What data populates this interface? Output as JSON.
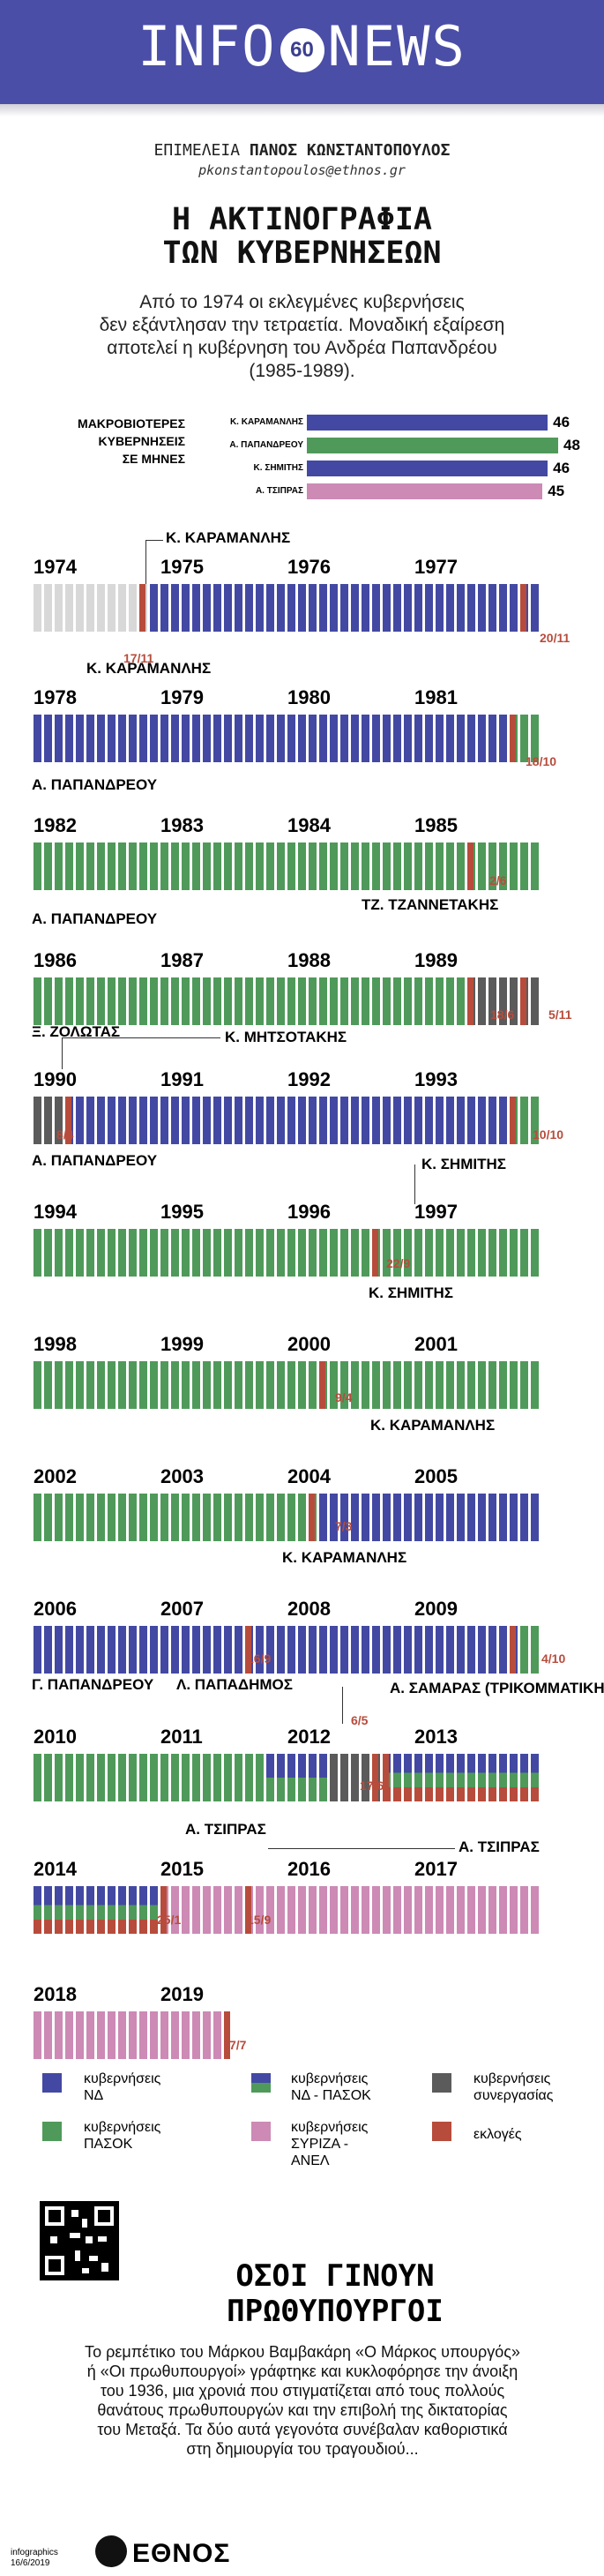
{
  "header": {
    "brand_left": "INFO",
    "number": "60",
    "brand_right": "NEWS"
  },
  "byline": {
    "label": "ΕΠΙΜΕΛΕΙΑ",
    "author": "ΠΑΝΟΣ ΚΩΝΣΤΑΝΤΟΠΟΥΛΟΣ",
    "email": "pkonstantopoulos@ethnos.gr"
  },
  "title": {
    "line1": "Η ΑΚΤΙΝΟΓΡΑΦΙΑ",
    "line2": "ΤΩΝ ΚΥΒΕΡΝΗΣΕΩΝ"
  },
  "lead": {
    "line1": "Από το 1974 οι εκλεγμένες κυβερνήσεις",
    "line2": "δεν εξάντλησαν την τετραετία. Μοναδική εξαίρεση",
    "line3": "αποτελεί η κυβέρνηση του Ανδρέα Παπανδρέου",
    "line4": "(1985-1989)."
  },
  "colors": {
    "nd": "#4349a2",
    "pasok": "#4f9a5a",
    "coalition": "#5b5b5b",
    "syriza": "#cc8ab5",
    "elections": "#b74c3c",
    "pre": "#d8d8d8"
  },
  "chart_data": {
    "type": "bar",
    "title": "ΜΑΚΡΟΒΙΟΤΕΡΕΣ ΚΥΒΕΡΝΗΣΕΙΣ ΣΕ ΜΗΝΕΣ",
    "title_lines": [
      "ΜΑΚΡΟΒΙΟΤΕΡΕΣ",
      "ΚΥΒΕΡΝΗΣΕΙΣ",
      "ΣΕ ΜΗΝΕΣ"
    ],
    "categories": [
      "Κ. ΚΑΡΑΜΑΝΛΗΣ",
      "Α. ΠΑΠΑΝΔΡΕΟΥ",
      "Κ. ΣΗΜΙΤΗΣ",
      "Α. ΤΣΙΠΡΑΣ"
    ],
    "values": [
      46,
      48,
      46,
      45
    ],
    "colors": [
      "#4349a2",
      "#4f9a5a",
      "#4349a2",
      "#cc8ab5"
    ],
    "xlim": [
      0,
      48
    ]
  },
  "timeline": {
    "rows": [
      {
        "years": [
          "1974",
          "1975",
          "1976",
          "1977"
        ],
        "bars": [
          "pre",
          "pre",
          "pre",
          "pre",
          "pre",
          "pre",
          "pre",
          "pre",
          "pre",
          "pre",
          "pre",
          "nd",
          "nd",
          "nd",
          "nd",
          "nd",
          "nd",
          "nd",
          "nd",
          "nd",
          "nd",
          "nd",
          "nd",
          "nd",
          "nd",
          "nd",
          "nd",
          "nd",
          "nd",
          "nd",
          "nd",
          "nd",
          "nd",
          "nd",
          "nd",
          "nd",
          "nd",
          "nd",
          "nd",
          "nd",
          "nd",
          "nd",
          "nd",
          "nd",
          "nd",
          "nd",
          "nd",
          "nd"
        ],
        "elections": [
          10,
          46
        ]
      },
      {
        "years": [
          "1978",
          "1979",
          "1980",
          "1981"
        ],
        "bars": [
          "nd",
          "nd",
          "nd",
          "nd",
          "nd",
          "nd",
          "nd",
          "nd",
          "nd",
          "nd",
          "nd",
          "nd",
          "nd",
          "nd",
          "nd",
          "nd",
          "nd",
          "nd",
          "nd",
          "nd",
          "nd",
          "nd",
          "nd",
          "nd",
          "nd",
          "nd",
          "nd",
          "nd",
          "nd",
          "nd",
          "nd",
          "nd",
          "nd",
          "nd",
          "nd",
          "nd",
          "nd",
          "nd",
          "nd",
          "nd",
          "nd",
          "nd",
          "nd",
          "nd",
          "nd",
          "pasok",
          "pasok",
          "pasok"
        ],
        "elections": [
          45
        ]
      },
      {
        "years": [
          "1982",
          "1983",
          "1984",
          "1985"
        ],
        "bars": [
          "pasok",
          "pasok",
          "pasok",
          "pasok",
          "pasok",
          "pasok",
          "pasok",
          "pasok",
          "pasok",
          "pasok",
          "pasok",
          "pasok",
          "pasok",
          "pasok",
          "pasok",
          "pasok",
          "pasok",
          "pasok",
          "pasok",
          "pasok",
          "pasok",
          "pasok",
          "pasok",
          "pasok",
          "pasok",
          "pasok",
          "pasok",
          "pasok",
          "pasok",
          "pasok",
          "pasok",
          "pasok",
          "pasok",
          "pasok",
          "pasok",
          "pasok",
          "pasok",
          "pasok",
          "pasok",
          "pasok",
          "pasok",
          "pasok",
          "pasok",
          "pasok",
          "pasok",
          "pasok",
          "pasok",
          "pasok"
        ],
        "elections": [
          41
        ]
      },
      {
        "years": [
          "1986",
          "1987",
          "1988",
          "1989"
        ],
        "bars": [
          "pasok",
          "pasok",
          "pasok",
          "pasok",
          "pasok",
          "pasok",
          "pasok",
          "pasok",
          "pasok",
          "pasok",
          "pasok",
          "pasok",
          "pasok",
          "pasok",
          "pasok",
          "pasok",
          "pasok",
          "pasok",
          "pasok",
          "pasok",
          "pasok",
          "pasok",
          "pasok",
          "pasok",
          "pasok",
          "pasok",
          "pasok",
          "pasok",
          "pasok",
          "pasok",
          "pasok",
          "pasok",
          "pasok",
          "pasok",
          "pasok",
          "pasok",
          "pasok",
          "pasok",
          "pasok",
          "pasok",
          "pasok",
          "coalition",
          "coalition",
          "coalition",
          "coalition",
          "coalition",
          "coalition",
          "coalition"
        ],
        "elections": [
          41,
          46
        ]
      },
      {
        "years": [
          "1990",
          "1991",
          "1992",
          "1993"
        ],
        "bars": [
          "coalition",
          "coalition",
          "coalition",
          "nd",
          "nd",
          "nd",
          "nd",
          "nd",
          "nd",
          "nd",
          "nd",
          "nd",
          "nd",
          "nd",
          "nd",
          "nd",
          "nd",
          "nd",
          "nd",
          "nd",
          "nd",
          "nd",
          "nd",
          "nd",
          "nd",
          "nd",
          "nd",
          "nd",
          "nd",
          "nd",
          "nd",
          "nd",
          "nd",
          "nd",
          "nd",
          "nd",
          "nd",
          "nd",
          "nd",
          "nd",
          "nd",
          "nd",
          "nd",
          "nd",
          "nd",
          "pasok",
          "pasok",
          "pasok"
        ],
        "elections": [
          3,
          45
        ]
      },
      {
        "years": [
          "1994",
          "1995",
          "1996",
          "1997"
        ],
        "bars": [
          "pasok",
          "pasok",
          "pasok",
          "pasok",
          "pasok",
          "pasok",
          "pasok",
          "pasok",
          "pasok",
          "pasok",
          "pasok",
          "pasok",
          "pasok",
          "pasok",
          "pasok",
          "pasok",
          "pasok",
          "pasok",
          "pasok",
          "pasok",
          "pasok",
          "pasok",
          "pasok",
          "pasok",
          "pasok",
          "pasok",
          "pasok",
          "pasok",
          "pasok",
          "pasok",
          "pasok",
          "pasok",
          "pasok",
          "pasok",
          "pasok",
          "pasok",
          "pasok",
          "pasok",
          "pasok",
          "pasok",
          "pasok",
          "pasok",
          "pasok",
          "pasok",
          "pasok",
          "pasok",
          "pasok",
          "pasok"
        ],
        "elections": [
          32
        ]
      },
      {
        "years": [
          "1998",
          "1999",
          "2000",
          "2001"
        ],
        "bars": [
          "pasok",
          "pasok",
          "pasok",
          "pasok",
          "pasok",
          "pasok",
          "pasok",
          "pasok",
          "pasok",
          "pasok",
          "pasok",
          "pasok",
          "pasok",
          "pasok",
          "pasok",
          "pasok",
          "pasok",
          "pasok",
          "pasok",
          "pasok",
          "pasok",
          "pasok",
          "pasok",
          "pasok",
          "pasok",
          "pasok",
          "pasok",
          "pasok",
          "pasok",
          "pasok",
          "pasok",
          "pasok",
          "pasok",
          "pasok",
          "pasok",
          "pasok",
          "pasok",
          "pasok",
          "pasok",
          "pasok",
          "pasok",
          "pasok",
          "pasok",
          "pasok",
          "pasok",
          "pasok",
          "pasok",
          "pasok"
        ],
        "elections": [
          27
        ]
      },
      {
        "years": [
          "2002",
          "2003",
          "2004",
          "2005"
        ],
        "bars": [
          "pasok",
          "pasok",
          "pasok",
          "pasok",
          "pasok",
          "pasok",
          "pasok",
          "pasok",
          "pasok",
          "pasok",
          "pasok",
          "pasok",
          "pasok",
          "pasok",
          "pasok",
          "pasok",
          "pasok",
          "pasok",
          "pasok",
          "pasok",
          "pasok",
          "pasok",
          "pasok",
          "pasok",
          "pasok",
          "pasok",
          "pasok",
          "nd",
          "nd",
          "nd",
          "nd",
          "nd",
          "nd",
          "nd",
          "nd",
          "nd",
          "nd",
          "nd",
          "nd",
          "nd",
          "nd",
          "nd",
          "nd",
          "nd",
          "nd",
          "nd",
          "nd",
          "nd"
        ],
        "elections": [
          26
        ]
      },
      {
        "years": [
          "2006",
          "2007",
          "2008",
          "2009"
        ],
        "bars": [
          "nd",
          "nd",
          "nd",
          "nd",
          "nd",
          "nd",
          "nd",
          "nd",
          "nd",
          "nd",
          "nd",
          "nd",
          "nd",
          "nd",
          "nd",
          "nd",
          "nd",
          "nd",
          "nd",
          "nd",
          "nd",
          "nd",
          "nd",
          "nd",
          "nd",
          "nd",
          "nd",
          "nd",
          "nd",
          "nd",
          "nd",
          "nd",
          "nd",
          "nd",
          "nd",
          "nd",
          "nd",
          "nd",
          "nd",
          "nd",
          "nd",
          "nd",
          "nd",
          "nd",
          "nd",
          "nd",
          "pasok",
          "pasok"
        ],
        "elections": [
          20,
          45
        ]
      },
      {
        "years": [
          "2010",
          "2011",
          "2012",
          "2013"
        ],
        "bars": [
          "pasok",
          "pasok",
          "pasok",
          "pasok",
          "pasok",
          "pasok",
          "pasok",
          "pasok",
          "pasok",
          "pasok",
          "pasok",
          "pasok",
          "pasok",
          "pasok",
          "pasok",
          "pasok",
          "pasok",
          "pasok",
          "pasok",
          "pasok",
          "pasok",
          "pasok",
          "nd-pasok",
          "nd-pasok",
          "nd-pasok",
          "nd-pasok",
          "nd-pasok",
          "nd-pasok",
          "coalition",
          "coalition",
          "coalition",
          "coalition",
          "coalition",
          "tri",
          "tri",
          "tri",
          "tri",
          "tri",
          "tri",
          "tri",
          "tri",
          "tri",
          "tri",
          "tri",
          "tri",
          "tri",
          "tri",
          "tri"
        ],
        "elections": [
          32,
          33
        ]
      },
      {
        "years": [
          "2014",
          "2015",
          "2016",
          "2017"
        ],
        "bars": [
          "tri",
          "tri",
          "tri",
          "tri",
          "tri",
          "tri",
          "tri",
          "tri",
          "tri",
          "tri",
          "tri",
          "tri",
          "syriza",
          "syriza",
          "syriza",
          "syriza",
          "syriza",
          "syriza",
          "syriza",
          "syriza",
          "syriza",
          "syriza",
          "syriza",
          "syriza",
          "syriza",
          "syriza",
          "syriza",
          "syriza",
          "syriza",
          "syriza",
          "syriza",
          "syriza",
          "syriza",
          "syriza",
          "syriza",
          "syriza",
          "syriza",
          "syriza",
          "syriza",
          "syriza",
          "syriza",
          "syriza",
          "syriza",
          "syriza",
          "syriza",
          "syriza",
          "syriza",
          "syriza"
        ],
        "elections": [
          12,
          20
        ]
      },
      {
        "years": [
          "2018",
          "2019"
        ],
        "bars": [
          "syriza",
          "syriza",
          "syriza",
          "syriza",
          "syriza",
          "syriza",
          "syriza",
          "syriza",
          "syriza",
          "syriza",
          "syriza",
          "syriza",
          "syriza",
          "syriza",
          "syriza",
          "syriza",
          "syriza",
          "syriza"
        ],
        "elections": [
          18
        ]
      }
    ],
    "notes": [
      {
        "text": "Κ. ΚΑΡΑΜΑΝΛΗΣ"
      },
      {
        "text": "17/11"
      },
      {
        "text": "20/11"
      },
      {
        "text": "Κ. ΚΑΡΑΜΑΝΛΗΣ"
      },
      {
        "text": "18/10"
      },
      {
        "text": "Α. ΠΑΠΑΝΔΡΕΟΥ"
      },
      {
        "text": "2/6"
      },
      {
        "text": "Α. ΠΑΠΑΝΔΡΕΟΥ"
      },
      {
        "text": "ΤΖ. ΤΖΑΝΝΕΤΑΚΗΣ"
      },
      {
        "text": "18/6"
      },
      {
        "text": "5/11"
      },
      {
        "text": "Ξ. ΖΟΛΩΤΑΣ"
      },
      {
        "text": "Κ. ΜΗΤΣΟΤΑΚΗΣ"
      },
      {
        "text": "8/4"
      },
      {
        "text": "10/10"
      },
      {
        "text": "Α. ΠΑΠΑΝΔΡΕΟΥ"
      },
      {
        "text": "Κ. ΣΗΜΙΤΗΣ"
      },
      {
        "text": "22/9"
      },
      {
        "text": "Κ. ΣΗΜΙΤΗΣ"
      },
      {
        "text": "9/4"
      },
      {
        "text": "Κ. ΚΑΡΑΜΑΝΛΗΣ"
      },
      {
        "text": "7/3"
      },
      {
        "text": "Κ. ΚΑΡΑΜΑΝΛΗΣ"
      },
      {
        "text": "16/9"
      },
      {
        "text": "4/10"
      },
      {
        "text": "Γ. ΠΑΠΑΝΔΡΕΟΥ"
      },
      {
        "text": "Λ. ΠΑΠΑΔΗΜΟΣ"
      },
      {
        "text": "Α. ΣΑΜΑΡΑΣ (ΤΡΙΚΟΜΜΑΤΙΚΗ)"
      },
      {
        "text": "6/5"
      },
      {
        "text": "17/6"
      },
      {
        "text": "Α. ΤΣΙΠΡΑΣ"
      },
      {
        "text": "Α. ΤΣΙΠΡΑΣ"
      },
      {
        "text": "25/1"
      },
      {
        "text": "15/9"
      },
      {
        "text": "7/7"
      }
    ]
  },
  "legend": {
    "nd": {
      "line1": "κυβερνήσεις",
      "line2": "ΝΔ"
    },
    "nd_pasok": {
      "line1": "κυβερνήσεις",
      "line2": "ΝΔ - ΠΑΣΟΚ"
    },
    "coalition": {
      "line1": "κυβερνήσεις",
      "line2": "συνεργασίας"
    },
    "pasok": {
      "line1": "κυβερνήσεις",
      "line2": "ΠΑΣΟΚ"
    },
    "syriza": {
      "line1": "κυβερνήσεις",
      "line2": "ΣΥΡΙΖΑ -",
      "line3": "ΑΝΕΛ"
    },
    "elections": {
      "line1": "εκλογές"
    }
  },
  "footer": {
    "section_title_1": "ΟΣΟΙ ΓΙΝΟΥΝ",
    "section_title_2": "ΠΡΩΘΥΠΟΥΡΓΟΙ",
    "desc1": "Το ρεμπέτικο του Μάρκου Βαμβακάρη «Ο Μάρκος υπουργός»",
    "desc2": "ή «Οι πρωθυπουργοί» γράφτηκε και κυκλοφόρησε την άνοιξη",
    "desc3": "του 1936, μια χρονιά που στιγματίζεται από τους πολλούς",
    "desc4": "θανάτους πρωθυπουργών και την επιβολή της δικτατορίας",
    "desc5": "του Μεταξά. Τα δύο αυτά γεγονότα συνέβαλαν καθοριστικά",
    "desc6": "στη δημιουργία του τραγουδιού...",
    "credit1": "infographics",
    "credit2": "16/6/2019",
    "brand": "ΕΘΝΟΣ"
  }
}
